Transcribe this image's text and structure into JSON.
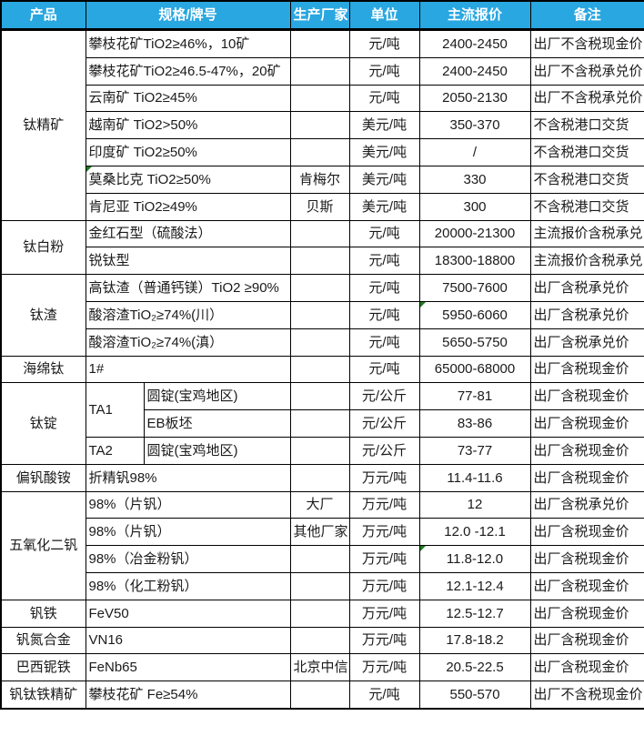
{
  "theme": {
    "header_bg": "#29a7e1",
    "header_fg": "#ffffff",
    "body_fg": "#1a1a1a",
    "border": "#000000",
    "comment_marker": "#217a21"
  },
  "columns": {
    "product": "产品",
    "spec": "规格/牌号",
    "manufacturer": "生产厂家",
    "unit": "单位",
    "price": "主流报价",
    "remark": "备注"
  },
  "groups": [
    {
      "product": "钛精矿",
      "rows": [
        {
          "spec": "攀枝花矿TiO2≥46%，10矿",
          "manufacturer": "",
          "unit": "元/吨",
          "price": "2400-2450",
          "remark": "出厂不含税现金价"
        },
        {
          "spec": "攀枝花矿TiO2≥46.5-47%，20矿",
          "manufacturer": "",
          "unit": "元/吨",
          "price": "2400-2450",
          "remark": "出厂不含税承兑价"
        },
        {
          "spec": "云南矿 TiO2≥45%",
          "manufacturer": "",
          "unit": "元/吨",
          "price": "2050-2130",
          "remark": "出厂不含税承兑价"
        },
        {
          "spec": "越南矿 TiO2>50%",
          "manufacturer": "",
          "unit": "美元/吨",
          "price": "350-370",
          "remark": "不含税港口交货"
        },
        {
          "spec": "印度矿 TiO2≥50%",
          "manufacturer": "",
          "unit": "美元/吨",
          "price": "/",
          "remark": "不含税港口交货"
        },
        {
          "spec": "莫桑比克 TiO2≥50%",
          "manufacturer": "肯梅尔",
          "unit": "美元/吨",
          "price": "330",
          "remark": "不含税港口交货",
          "marker_spec": true
        },
        {
          "spec": "肯尼亚 TiO2≥49%",
          "manufacturer": "贝斯",
          "unit": "美元/吨",
          "price": "300",
          "remark": "不含税港口交货"
        }
      ]
    },
    {
      "product": "钛白粉",
      "rows": [
        {
          "spec": "金红石型（硫酸法）",
          "manufacturer": "",
          "unit": "元/吨",
          "price": "20000-21300",
          "remark": "主流报价含税承兑"
        },
        {
          "spec": "锐钛型",
          "manufacturer": "",
          "unit": "元/吨",
          "price": "18300-18800",
          "remark": "主流报价含税承兑"
        }
      ]
    },
    {
      "product": "钛渣",
      "rows": [
        {
          "spec": "高钛渣（普通钙镁）TiO2 ≥90%",
          "manufacturer": "",
          "unit": "元/吨",
          "price": "7500-7600",
          "remark": "出厂含税承兑价"
        },
        {
          "spec": "酸溶渣TiO₂≥74%(川）",
          "manufacturer": "",
          "unit": "元/吨",
          "price": "5950-6060",
          "remark": "出厂含税承兑价",
          "marker_price": true
        },
        {
          "spec": "酸溶渣TiO₂≥74%(滇）",
          "manufacturer": "",
          "unit": "元/吨",
          "price": "5650-5750",
          "remark": "出厂含税承兑价"
        }
      ]
    },
    {
      "product": "海绵钛",
      "rows": [
        {
          "spec": "1#",
          "manufacturer": "",
          "unit": "元/吨",
          "price": "65000-68000",
          "remark": "出厂含税现金价"
        }
      ]
    },
    {
      "product": "钛锭",
      "rows": [
        {
          "grade": "TA1",
          "grade_rowspan": 2,
          "spec": "圆锭(宝鸡地区)",
          "manufacturer": "",
          "unit": "元/公斤",
          "price": "77-81",
          "remark": "出厂含税现金价"
        },
        {
          "grade_cont": true,
          "spec": "EB板坯",
          "manufacturer": "",
          "unit": "元/公斤",
          "price": "83-86",
          "remark": "出厂含税现金价"
        },
        {
          "grade": "TA2",
          "grade_rowspan": 1,
          "spec": "圆锭(宝鸡地区)",
          "manufacturer": "",
          "unit": "元/公斤",
          "price": "73-77",
          "remark": "出厂含税现金价"
        }
      ]
    },
    {
      "product": "偏钒酸铵",
      "rows": [
        {
          "spec": "折精钒98%",
          "manufacturer": "",
          "unit": "万元/吨",
          "price": "11.4-11.6",
          "remark": "出厂含税现金价"
        }
      ]
    },
    {
      "product": "五氧化二钒",
      "rows": [
        {
          "spec": "98%（片钒）",
          "manufacturer": "大厂",
          "unit": "万元/吨",
          "price": "12",
          "remark": "出厂含税承兑价"
        },
        {
          "spec": "98%（片钒）",
          "manufacturer": "其他厂家",
          "unit": "万元/吨",
          "price": "12.0 -12.1",
          "remark": "出厂含税现金价"
        },
        {
          "spec": "98%（冶金粉钒）",
          "manufacturer": "",
          "unit": "万元/吨",
          "price": "11.8-12.0",
          "remark": "出厂含税现金价",
          "marker_price": true
        },
        {
          "spec": "98%（化工粉钒）",
          "manufacturer": "",
          "unit": "万元/吨",
          "price": "12.1-12.4",
          "remark": "出厂含税现金价"
        }
      ]
    },
    {
      "product": "钒铁",
      "rows": [
        {
          "spec": "FeV50",
          "manufacturer": "",
          "unit": "万元/吨",
          "price": "12.5-12.7",
          "remark": "出厂含税现金价"
        }
      ]
    },
    {
      "product": "钒氮合金",
      "rows": [
        {
          "spec": "VN16",
          "manufacturer": "",
          "unit": "万元/吨",
          "price": "17.8-18.2",
          "remark": "出厂含税现金价"
        }
      ]
    },
    {
      "product": "巴西铌铁",
      "rows": [
        {
          "spec": "FeNb65",
          "manufacturer": "北京中信",
          "unit": "万元/吨",
          "price": "20.5-22.5",
          "remark": "出厂含税现金价"
        }
      ]
    },
    {
      "product": "钒钛铁精矿",
      "rows": [
        {
          "spec": "攀枝花矿 Fe≥54%",
          "manufacturer": "",
          "unit": "元/吨",
          "price": "550-570",
          "remark": "出厂不含税现金价"
        }
      ]
    }
  ]
}
